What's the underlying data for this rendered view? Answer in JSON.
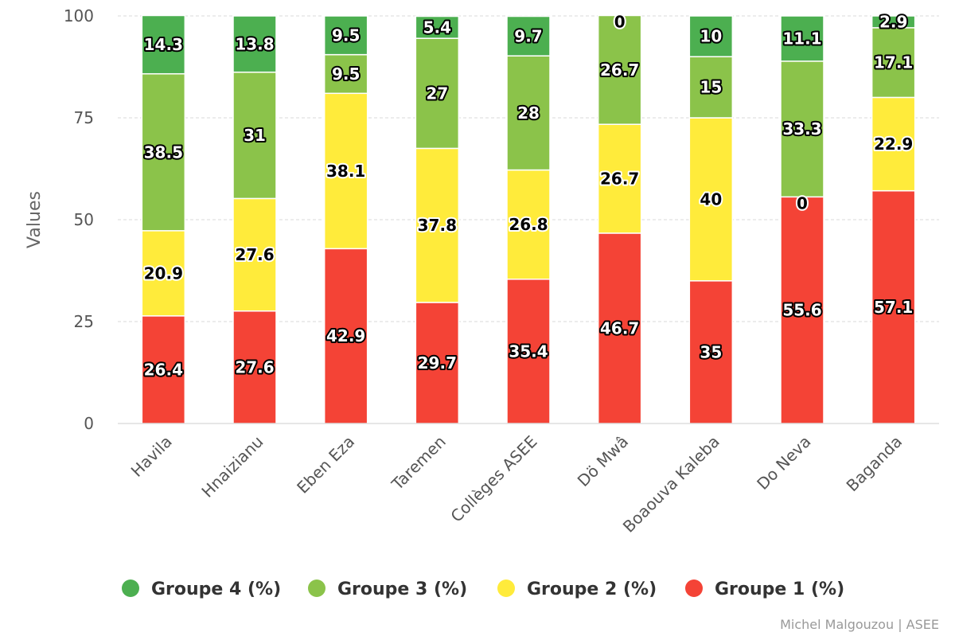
{
  "chart_data": {
    "type": "bar",
    "stacked": true,
    "ylabel": "Values",
    "ylim": [
      0,
      100
    ],
    "yticks": [
      0,
      25,
      50,
      75,
      100
    ],
    "grid": true,
    "legend_position": "bottom",
    "categories": [
      "Havila",
      "Hnaizianu",
      "Eben Eza",
      "Taremen",
      "Collèges ASEE",
      "Dö Mwâ",
      "Boaouva Kaleba",
      "Do Neva",
      "Baganda"
    ],
    "series": [
      {
        "name": "Groupe 1 (%)",
        "color": "#f44336",
        "values": [
          26.4,
          27.6,
          42.9,
          29.7,
          35.4,
          46.7,
          35,
          55.6,
          57.1
        ]
      },
      {
        "name": "Groupe 2 (%)",
        "color": "#ffeb3b",
        "values": [
          20.9,
          27.6,
          38.1,
          37.8,
          26.8,
          26.7,
          40,
          0,
          22.9
        ]
      },
      {
        "name": "Groupe 3 (%)",
        "color": "#8bc34a",
        "values": [
          38.5,
          31,
          9.5,
          27,
          28,
          26.7,
          15,
          33.3,
          17.1
        ]
      },
      {
        "name": "Groupe 4 (%)",
        "color": "#4caf50",
        "values": [
          14.3,
          13.8,
          9.5,
          5.4,
          9.7,
          0,
          10,
          11.1,
          2.9
        ]
      }
    ],
    "legend_order": [
      "Groupe 4 (%)",
      "Groupe 3 (%)",
      "Groupe 2 (%)",
      "Groupe 1 (%)"
    ]
  },
  "credits": "Michel Malgouzou | ASEE"
}
